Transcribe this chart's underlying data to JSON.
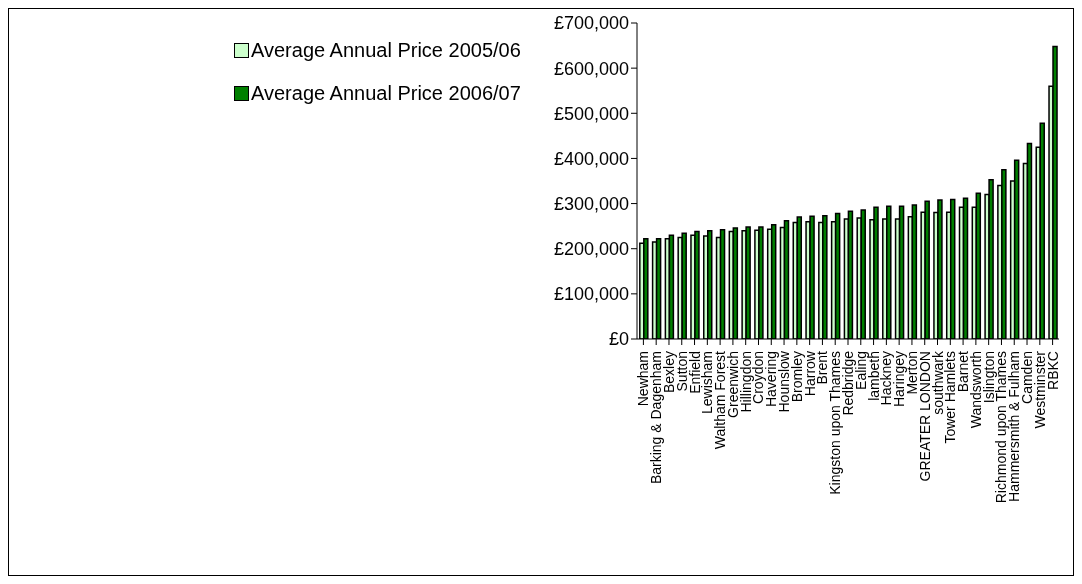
{
  "chart_data": {
    "type": "bar",
    "categories": [
      "Newham",
      "Barking & Dagenham",
      "Bexley",
      "Sutton",
      "Enfield",
      "Lewisham",
      "Waltham Forest",
      "Greenwich",
      "Hillingdon",
      "Croydon",
      "Havering",
      "Hounslow",
      "Bromley",
      "Harrow",
      "Brent",
      "Kingston upon Thames",
      "Redbridge",
      "Ealing",
      "lambeth",
      "Hackney",
      "Haringey",
      "Merton",
      "GREATER LONDON",
      "southwark",
      "Tower Hamlets",
      "Barnet",
      "Wandsworth",
      "Islington",
      "Richmond upon Thames",
      "Hammersmith & Fulham",
      "Camden",
      "Westminster",
      "RBKC"
    ],
    "series": [
      {
        "name": "Average Annual Price 2005/06",
        "color": "#ccffcc",
        "values": [
          212000,
          215000,
          222000,
          225000,
          230000,
          228000,
          225000,
          238000,
          240000,
          241000,
          243000,
          247000,
          258000,
          260000,
          258000,
          260000,
          266000,
          268000,
          264000,
          266000,
          266000,
          271000,
          281000,
          280000,
          281000,
          292000,
          292000,
          320000,
          340000,
          350000,
          389000,
          425000,
          560000
        ]
      },
      {
        "name": "Average Annual Price 2006/07",
        "color": "#008000",
        "values": [
          222000,
          222000,
          230000,
          234000,
          238000,
          240000,
          242000,
          246000,
          248000,
          248000,
          253000,
          262000,
          270000,
          272000,
          273000,
          278000,
          283000,
          286000,
          292000,
          294000,
          294000,
          297000,
          305000,
          308000,
          309000,
          312000,
          323000,
          353000,
          375000,
          396000,
          433000,
          478000,
          648000
        ]
      }
    ],
    "ylim": [
      0,
      700000
    ],
    "yticks": [
      {
        "value": 0,
        "label": "£0"
      },
      {
        "value": 100000,
        "label": "£100,000"
      },
      {
        "value": 200000,
        "label": "£200,000"
      },
      {
        "value": 300000,
        "label": "£300,000"
      },
      {
        "value": 400000,
        "label": "£400,000"
      },
      {
        "value": 500000,
        "label": "£500,000"
      },
      {
        "value": 600000,
        "label": "£600,000"
      },
      {
        "value": 700000,
        "label": "£700,000"
      }
    ],
    "grid": false,
    "legend": "top left"
  }
}
